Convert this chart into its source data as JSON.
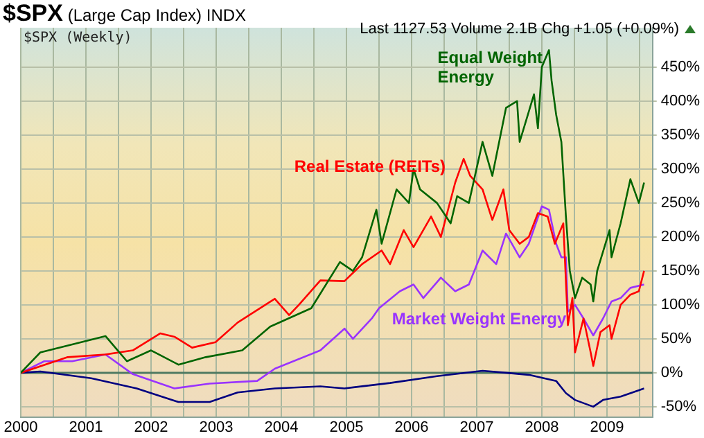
{
  "chart_data": {
    "type": "line",
    "title": "$SPX (Large Cap Index) INDX",
    "annotations": [
      "Last 1127.53 Volume 2.1B Chg +1.05 (+0.09%)",
      "$SPX (Weekly)"
    ],
    "series": [
      {
        "name": "Equal Weight Energy",
        "color": "#006400",
        "x": [
          2000,
          2000.3,
          2001.3,
          2001.63,
          2002,
          2002.42,
          2002.84,
          2003.4,
          2003.83,
          2004.46,
          2004.9,
          2005.1,
          2005.24,
          2005.46,
          2005.54,
          2005.77,
          2005.96,
          2006.03,
          2006.13,
          2006.39,
          2006.6,
          2006.7,
          2006.88,
          2007.09,
          2007.24,
          2007.45,
          2007.62,
          2007.66,
          2007.88,
          2007.94,
          2008,
          2008.11,
          2008.15,
          2008.22,
          2008.3,
          2008.37,
          2008.43,
          2008.51,
          2008.62,
          2008.75,
          2008.79,
          2008.85,
          2009.04,
          2009.07,
          2009.21,
          2009.36,
          2009.49,
          2009.57
        ],
        "values": [
          0,
          30,
          54,
          17,
          33,
          12,
          23,
          33,
          68,
          95,
          163,
          150,
          170,
          240,
          190,
          270,
          250,
          300,
          270,
          250,
          220,
          260,
          250,
          340,
          290,
          390,
          400,
          340,
          410,
          360,
          450,
          475,
          430,
          380,
          340,
          230,
          150,
          110,
          140,
          130,
          105,
          150,
          210,
          170,
          220,
          285,
          250,
          280
        ]
      },
      {
        "name": "Real Estate (REITs)",
        "color": "#ff0000",
        "x": [
          2000,
          2000.72,
          2001.3,
          2001.72,
          2002.14,
          2002.36,
          2002.63,
          2002.99,
          2003.33,
          2003.9,
          2004.12,
          2004.27,
          2004.6,
          2004.97,
          2005.24,
          2005.54,
          2005.67,
          2005.88,
          2006.03,
          2006.3,
          2006.45,
          2006.67,
          2006.8,
          2006.9,
          2007.09,
          2007.24,
          2007.41,
          2007.5,
          2007.66,
          2007.8,
          2007.94,
          2008.09,
          2008.2,
          2008.33,
          2008.4,
          2008.47,
          2008.51,
          2008.64,
          2008.75,
          2008.79,
          2008.9,
          2009.04,
          2009.07,
          2009.21,
          2009.36,
          2009.49,
          2009.57
        ],
        "values": [
          0,
          23,
          27,
          33,
          58,
          53,
          37,
          45,
          74,
          109,
          85,
          100,
          136,
          135,
          160,
          180,
          160,
          210,
          185,
          230,
          200,
          280,
          315,
          290,
          270,
          225,
          270,
          210,
          190,
          200,
          235,
          230,
          190,
          220,
          70,
          110,
          30,
          80,
          30,
          10,
          60,
          70,
          50,
          100,
          115,
          120,
          150
        ]
      },
      {
        "name": "Market Weight Energy",
        "color": "#9933ff",
        "x": [
          2000,
          2000.36,
          2000.79,
          2001.3,
          2001.72,
          2002.36,
          2002.9,
          2003.63,
          2003.9,
          2004.6,
          2004.97,
          2005.1,
          2005.39,
          2005.5,
          2005.82,
          2006.03,
          2006.18,
          2006.45,
          2006.67,
          2006.88,
          2007.09,
          2007.3,
          2007.45,
          2007.66,
          2007.8,
          2008,
          2008.11,
          2008.22,
          2008.3,
          2008.37,
          2008.4,
          2008.51,
          2008.64,
          2008.79,
          2008.94,
          2009.07,
          2009.21,
          2009.36,
          2009.57
        ],
        "values": [
          0,
          17,
          17,
          27,
          -2,
          -23,
          -16,
          -12,
          6,
          33,
          65,
          50,
          80,
          95,
          120,
          130,
          110,
          140,
          120,
          130,
          180,
          160,
          205,
          170,
          190,
          245,
          240,
          190,
          170,
          170,
          90,
          100,
          80,
          55,
          80,
          105,
          110,
          125,
          130
        ]
      },
      {
        "color": "#000080",
        "x": [
          2000,
          2000.3,
          2001.08,
          2001.78,
          2002.42,
          2002.9,
          2003.33,
          2003.9,
          2004.6,
          2004.97,
          2005.67,
          2006.39,
          2007.09,
          2007.45,
          2007.8,
          2008.22,
          2008.37,
          2008.51,
          2008.79,
          2008.94,
          2009.21,
          2009.57
        ],
        "values": [
          0,
          2,
          -8,
          -23,
          -43,
          -43,
          -29,
          -23,
          -20,
          -23,
          -15,
          -5,
          3,
          0,
          -3,
          -12,
          -30,
          -40,
          -50,
          -40,
          -35,
          -23
        ]
      }
    ],
    "xlim": [
      2000,
      2009.7
    ],
    "xticks": [
      2000,
      {
        "value": 2000.5,
        "label": null
      },
      2001,
      {
        "value": 2001.5,
        "label": null
      },
      2002,
      {
        "value": 2002.5,
        "label": null
      },
      2003,
      {
        "value": 2003.5,
        "label": null
      },
      2004,
      {
        "value": 2004.5,
        "label": null
      },
      2005,
      {
        "value": 2005.5,
        "label": null
      },
      2006,
      {
        "value": 2006.5,
        "label": null
      },
      2007,
      {
        "value": 2007.5,
        "label": null
      },
      2008,
      {
        "value": 2008.5,
        "label": null
      },
      2009,
      {
        "value": 2009.5,
        "label": null
      }
    ],
    "ylim": [
      -65,
      508
    ],
    "yticks": [
      {
        "value": -50,
        "label": "-50%"
      },
      {
        "value": 0,
        "label": "0%"
      },
      {
        "value": 50,
        "label": "50%"
      },
      {
        "value": 100,
        "label": "100%"
      },
      {
        "value": 150,
        "label": "150%"
      },
      {
        "value": 200,
        "label": "200%"
      },
      {
        "value": 250,
        "label": "250%"
      },
      {
        "value": 300,
        "label": "300%"
      },
      {
        "value": 350,
        "label": "350%"
      },
      {
        "value": 400,
        "label": "400%"
      },
      {
        "value": 450,
        "label": "450%"
      }
    ],
    "ref_lines": [
      {
        "axis": "y",
        "value": 0,
        "color": "#4f7a62"
      }
    ],
    "grid": true,
    "legend": false,
    "marker": "none",
    "line_style": "solid"
  }
}
